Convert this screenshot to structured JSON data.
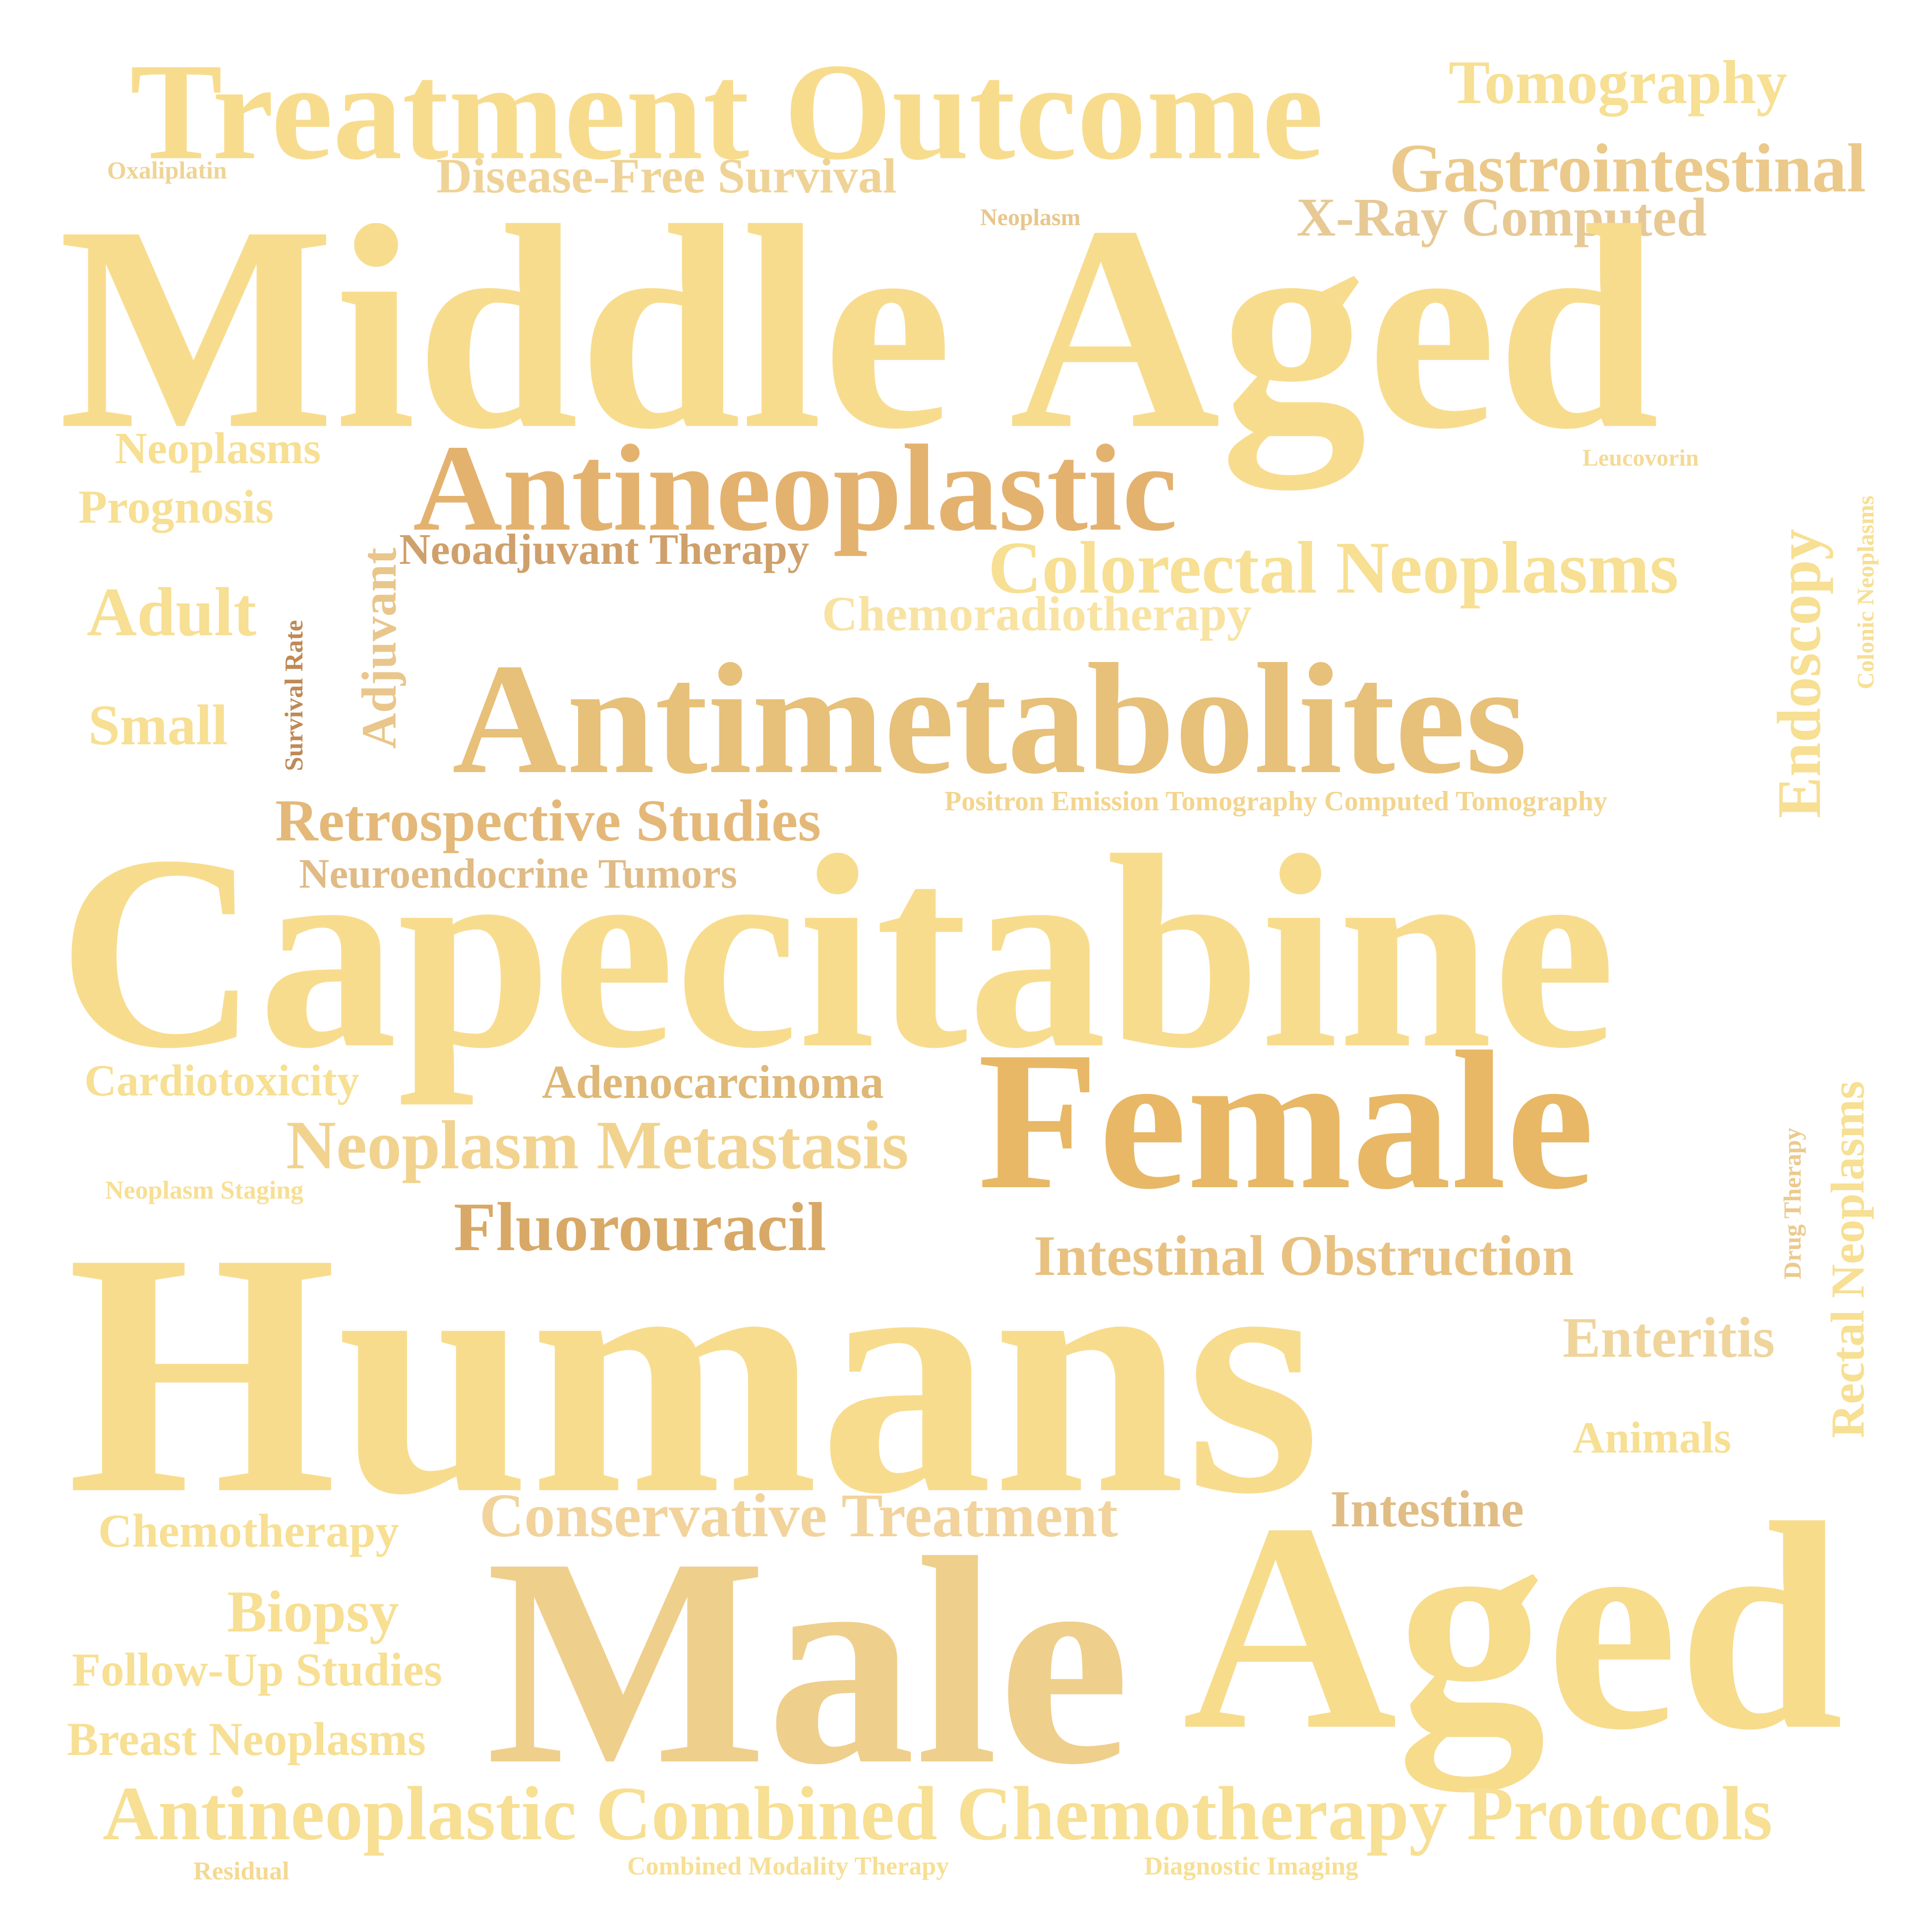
{
  "words": [
    {
      "id": "treatment-outcome",
      "text": "Treatment Outcome",
      "color": "#f8dc8e"
    },
    {
      "id": "tomography",
      "text": "Tomography",
      "color": "#f7df93"
    },
    {
      "id": "gastrointestinal",
      "text": "Gastrointestinal",
      "color": "#ebc98a"
    },
    {
      "id": "oxaliplatin",
      "text": "Oxaliplatin",
      "color": "#efd495"
    },
    {
      "id": "disease-free-survival",
      "text": "Disease-Free Survival",
      "color": "#efd396"
    },
    {
      "id": "neoplasm",
      "text": "Neoplasm",
      "color": "#e8c68c"
    },
    {
      "id": "x-ray-computed",
      "text": "X-Ray Computed",
      "color": "#e7c995"
    },
    {
      "id": "middle-aged",
      "text": "Middle Aged",
      "color": "#f8dc8e"
    },
    {
      "id": "neoplasms",
      "text": "Neoplasms",
      "color": "#f7df93"
    },
    {
      "id": "leucovorin",
      "text": "Leucovorin",
      "color": "#f4da95"
    },
    {
      "id": "prognosis",
      "text": "Prognosis",
      "color": "#f7df93"
    },
    {
      "id": "antineoplastic",
      "text": "Antineoplastic",
      "color": "#e4b26f"
    },
    {
      "id": "neoadjuvant-therapy",
      "text": "Neoadjuvant Therapy",
      "color": "#cfa06b"
    },
    {
      "id": "colorectal-neoplasms",
      "text": "Colorectal Neoplasms",
      "color": "#f7df93"
    },
    {
      "id": "chemoradiotherapy",
      "text": "Chemoradiotherapy",
      "color": "#f8e3a3"
    },
    {
      "id": "adult",
      "text": "Adult",
      "color": "#f7df93"
    },
    {
      "id": "survival-rate",
      "text": "Survival Rate",
      "color": "#bf8a56"
    },
    {
      "id": "adjuvant",
      "text": "Adjuvant",
      "color": "#e9c68b"
    },
    {
      "id": "antimetabolites",
      "text": "Antimetabolites",
      "color": "#e7c079"
    },
    {
      "id": "endoscopy",
      "text": "Endoscopy",
      "color": "#f7df93"
    },
    {
      "id": "colonic-neoplasms",
      "text": "Colonic Neoplasms",
      "color": "#f7df93"
    },
    {
      "id": "small",
      "text": "Small",
      "color": "#f7df93"
    },
    {
      "id": "retrospective-studies",
      "text": "Retrospective Studies",
      "color": "#e4b878"
    },
    {
      "id": "pet-ct",
      "text": "Positron Emission Tomography Computed Tomography",
      "color": "#f3d58e"
    },
    {
      "id": "neuroendocrine-tumors",
      "text": "Neuroendocrine Tumors",
      "color": "#e0bb86"
    },
    {
      "id": "capecitabine",
      "text": "Capecitabine",
      "color": "#f8dc8e"
    },
    {
      "id": "cardiotoxicity",
      "text": "Cardiotoxicity",
      "color": "#f7df93"
    },
    {
      "id": "adenocarcinoma",
      "text": "Adenocarcinoma",
      "color": "#dfb776"
    },
    {
      "id": "female",
      "text": "Female",
      "color": "#e8b866"
    },
    {
      "id": "neoplasm-metastasis",
      "text": "Neoplasm Metastasis",
      "color": "#f1d38f"
    },
    {
      "id": "rectal-neoplasms",
      "text": "Rectal Neoplasms",
      "color": "#f7df93"
    },
    {
      "id": "neoplasm-staging",
      "text": "Neoplasm Staging",
      "color": "#f7df93"
    },
    {
      "id": "drug-therapy",
      "text": "Drug Therapy",
      "color": "#ebca8e"
    },
    {
      "id": "fluorouracil",
      "text": "Fluorouracil",
      "color": "#d8a866"
    },
    {
      "id": "intestinal-obstruction",
      "text": "Intestinal Obstruction",
      "color": "#e8c181"
    },
    {
      "id": "humans",
      "text": "Humans",
      "color": "#f8dc8e"
    },
    {
      "id": "enteritis",
      "text": "Enteritis",
      "color": "#efd49c"
    },
    {
      "id": "animals",
      "text": "Animals",
      "color": "#f7df93"
    },
    {
      "id": "chemotherapy",
      "text": "Chemotherapy",
      "color": "#f7df93"
    },
    {
      "id": "conservative-treatment",
      "text": "Conservative Treatment",
      "color": "#f1d39b"
    },
    {
      "id": "intestine",
      "text": "Intestine",
      "color": "#e0bd85"
    },
    {
      "id": "biopsy",
      "text": "Biopsy",
      "color": "#f7df93"
    },
    {
      "id": "male",
      "text": "Male",
      "color": "#efcf8c"
    },
    {
      "id": "aged",
      "text": "Aged",
      "color": "#f7dc8c"
    },
    {
      "id": "follow-up-studies",
      "text": "Follow-Up Studies",
      "color": "#f7df93"
    },
    {
      "id": "breast-neoplasms",
      "text": "Breast Neoplasms",
      "color": "#f7df93"
    },
    {
      "id": "antineoplastic-combined",
      "text": "Antineoplastic Combined Chemotherapy Protocols",
      "color": "#f7df93"
    },
    {
      "id": "residual",
      "text": "Residual",
      "color": "#f4d993"
    },
    {
      "id": "combined-modality-therapy",
      "text": "Combined Modality Therapy",
      "color": "#f7df93"
    },
    {
      "id": "diagnostic-imaging",
      "text": "Diagnostic Imaging",
      "color": "#f7df93"
    }
  ]
}
